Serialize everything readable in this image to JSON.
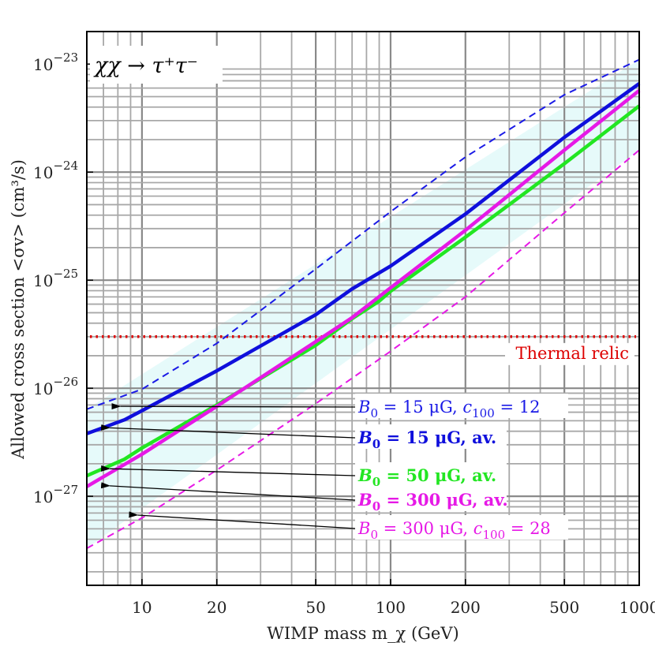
{
  "chart_data": {
    "type": "line",
    "title": "",
    "process_label": "χχ → τ⁺τ⁻",
    "xlabel": "WIMP mass m_χ (GeV)",
    "ylabel": "Allowed cross section <σv> (cm³/s)",
    "xscale": "log",
    "yscale": "log",
    "xlim": [
      6,
      1000
    ],
    "ylim": [
      1.5e-28,
      2e-23
    ],
    "x_ticks": [
      {
        "value": 10,
        "label": "10"
      },
      {
        "value": 20,
        "label": "20"
      },
      {
        "value": 50,
        "label": "50"
      },
      {
        "value": 100,
        "label": "100"
      },
      {
        "value": 200,
        "label": "200"
      },
      {
        "value": 500,
        "label": "500"
      },
      {
        "value": 1000,
        "label": "1000"
      }
    ],
    "y_ticks": [
      {
        "value": 1e-27,
        "base": "10",
        "exp": "−27"
      },
      {
        "value": 1e-26,
        "base": "10",
        "exp": "−26"
      },
      {
        "value": 1e-25,
        "base": "10",
        "exp": "−25"
      },
      {
        "value": 1e-24,
        "base": "10",
        "exp": "−24"
      },
      {
        "value": 1e-23,
        "base": "10",
        "exp": "−23"
      }
    ],
    "grid": true,
    "band": {
      "color": "#e6fafa",
      "x": [
        6,
        1000
      ],
      "upper": [
        6.4e-27,
        1.1e-23
      ],
      "lower": [
        3.3e-28,
        1.6e-24
      ]
    },
    "thermal_relic": {
      "value": 3e-26,
      "label": "Thermal relic",
      "color": "#dd0000"
    },
    "series": [
      {
        "name": "B0 = 15 μG, c100 = 12",
        "color": "#1a1ae6",
        "style": "dashed",
        "x": [
          6,
          10,
          20,
          50,
          100,
          200,
          500,
          1000
        ],
        "y": [
          6.4e-27,
          9.8e-27,
          2.6e-26,
          1.27e-25,
          4.3e-25,
          1.38e-24,
          5.2e-24,
          1.1e-23
        ]
      },
      {
        "name": "B0 = 15 μG, av.",
        "color": "#0f0fdc",
        "style": "solid",
        "x": [
          6,
          8.5,
          10,
          20,
          50,
          70,
          100,
          200,
          500,
          1000
        ],
        "y": [
          3.8e-27,
          5.1e-27,
          6.2e-27,
          1.45e-26,
          4.8e-26,
          8.3e-26,
          1.35e-25,
          4.1e-25,
          2.1e-24,
          6.6e-24
        ]
      },
      {
        "name": "B0 = 50 μG, av.",
        "color": "#22e622",
        "style": "solid",
        "x": [
          6,
          8.5,
          10,
          20,
          50,
          70,
          90,
          100,
          200,
          500,
          1000
        ],
        "y": [
          1.55e-27,
          2.2e-27,
          2.8e-27,
          7e-27,
          2.5e-26,
          4.4e-26,
          6.4e-26,
          7.9e-26,
          2.5e-25,
          1.2e-24,
          4.1e-24
        ]
      },
      {
        "name": "B0 = 300 μG, av.",
        "color": "#e619e6",
        "style": "solid",
        "x": [
          6,
          10,
          20,
          50,
          70,
          100,
          200,
          500,
          1000
        ],
        "y": [
          1.23e-27,
          2.45e-27,
          6.8e-27,
          2.7e-26,
          4.5e-26,
          8.5e-26,
          2.9e-25,
          1.6e-24,
          5.7e-24
        ]
      },
      {
        "name": "B0 = 300 μG, c100 = 28",
        "color": "#e619e6",
        "style": "dashed",
        "x": [
          6,
          10,
          20,
          50,
          100,
          200,
          500,
          1000
        ],
        "y": [
          3.3e-28,
          6.3e-28,
          1.75e-27,
          7.2e-27,
          2.2e-26,
          7e-26,
          4.2e-25,
          1.6e-24
        ]
      }
    ],
    "annotations": [
      {
        "base": "B",
        "sub": "0",
        "mid": " = 15 μG,  ",
        "var": "c",
        "sub2": "100",
        "tail": " = 12",
        "bold": false,
        "color": "#1a1ae6",
        "arrow_to": {
          "x": 7.5,
          "y": 6.8e-27
        }
      },
      {
        "base": "B",
        "sub": "0",
        "mid": " = 15 μG,  av.",
        "var": "",
        "sub2": "",
        "tail": "",
        "bold": true,
        "color": "#0f0fdc",
        "arrow_to": {
          "x": 6.8,
          "y": 4.3e-27
        }
      },
      {
        "base": "B",
        "sub": "0",
        "mid": " = 50 μG,  av.",
        "var": "",
        "sub2": "",
        "tail": "",
        "bold": true,
        "color": "#22e622",
        "arrow_to": {
          "x": 6.8,
          "y": 1.8e-27
        }
      },
      {
        "base": "B",
        "sub": "0",
        "mid": " = 300 μG,  av.",
        "var": "",
        "sub2": "",
        "tail": "",
        "bold": true,
        "color": "#e619e6",
        "arrow_to": {
          "x": 6.8,
          "y": 1.25e-27
        }
      },
      {
        "base": "B",
        "sub": "0",
        "mid": " = 300 μG,  ",
        "var": "c",
        "sub2": "100",
        "tail": " = 28",
        "bold": false,
        "color": "#e619e6",
        "arrow_to": {
          "x": 8.8,
          "y": 6.7e-28
        }
      }
    ]
  }
}
